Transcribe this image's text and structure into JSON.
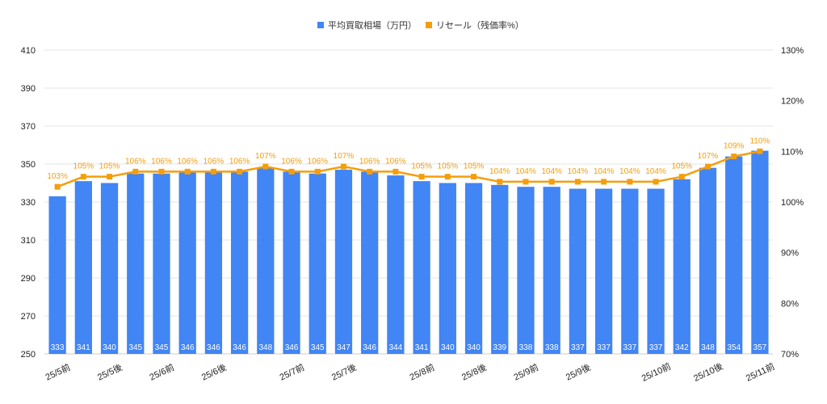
{
  "chart_data": {
    "type": "bar+line",
    "title": "",
    "legend": {
      "position": "top",
      "entries": [
        "平均買取相場（万円）",
        "リセール（残価率%）"
      ]
    },
    "categories": [
      "25/5前",
      "",
      "25/5後",
      "",
      "25/6前",
      "",
      "25/6後",
      "",
      "",
      "25/7前",
      "",
      "25/7後",
      "",
      "",
      "25/8前",
      "",
      "25/8後",
      "",
      "25/9前",
      "",
      "25/9後",
      "",
      "",
      "25/10前",
      "",
      "25/10後",
      "",
      "25/11前"
    ],
    "series": [
      {
        "name": "平均買取相場（万円）",
        "type": "bar",
        "axis": "left",
        "color": "#4285f4",
        "values": [
          333,
          341,
          340,
          345,
          345,
          346,
          346,
          346,
          348,
          346,
          345,
          347,
          346,
          344,
          341,
          340,
          340,
          339,
          338,
          338,
          337,
          337,
          337,
          337,
          342,
          348,
          354,
          357
        ]
      },
      {
        "name": "リセール（残価率%）",
        "type": "line",
        "axis": "right",
        "color": "#f59e0b",
        "values": [
          103,
          105,
          105,
          106,
          106,
          106,
          106,
          106,
          107,
          106,
          106,
          107,
          106,
          106,
          105,
          105,
          105,
          104,
          104,
          104,
          104,
          104,
          104,
          104,
          105,
          107,
          109,
          110
        ]
      }
    ],
    "left_axis": {
      "ylim": [
        250,
        410
      ],
      "ticks": [
        "250",
        "270",
        "290",
        "310",
        "330",
        "350",
        "370",
        "390",
        "410"
      ]
    },
    "right_axis": {
      "ylim": [
        70,
        130
      ],
      "ticks": [
        "70%",
        "80%",
        "90%",
        "100%",
        "110%",
        "120%",
        "130%"
      ]
    },
    "grid": true
  }
}
